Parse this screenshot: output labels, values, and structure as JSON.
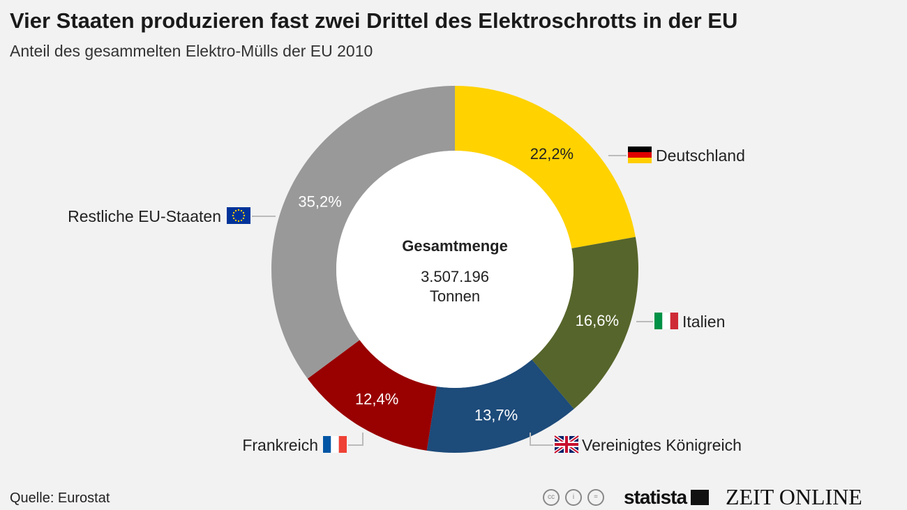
{
  "title": "Vier Staaten produzieren fast zwei Drittel des Elektroschrotts in der EU",
  "subtitle": "Anteil des gesammelten Elektro-Mülls der EU 2010",
  "source": "Quelle: Eurostat",
  "logos": {
    "statista": "statista",
    "zeit": "ZEIT ONLINE"
  },
  "chart_data": {
    "type": "pie",
    "variant": "donut",
    "title": "Vier Staaten produzieren fast zwei Drittel des Elektroschrotts in der EU",
    "center": {
      "heading": "Gesamtmenge",
      "value": "3.507.196",
      "unit": "Tonnen"
    },
    "slices": [
      {
        "label": "Deutschland",
        "value": 22.2,
        "text": "22,2%",
        "color": "#FFD200",
        "text_color": "#222222",
        "flag": "de"
      },
      {
        "label": "Italien",
        "value": 16.6,
        "text": "16,6%",
        "color": "#56652B",
        "text_color": "#ffffff",
        "flag": "it"
      },
      {
        "label": "Vereinigtes Königreich",
        "value": 13.7,
        "text": "13,7%",
        "color": "#1D4B7A",
        "text_color": "#ffffff",
        "flag": "uk"
      },
      {
        "label": "Frankreich",
        "value": 12.4,
        "text": "12,4%",
        "color": "#990000",
        "text_color": "#ffffff",
        "flag": "fr"
      },
      {
        "label": "Restliche EU-Staaten",
        "value": 35.2,
        "text": "35,2%",
        "color": "#999999",
        "text_color": "#ffffff",
        "flag": "eu"
      }
    ]
  }
}
